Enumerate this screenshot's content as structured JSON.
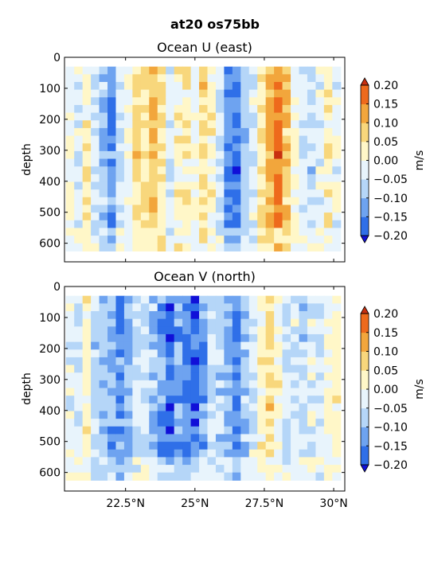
{
  "figure": {
    "title": "at20 os75bb"
  },
  "chart_data": [
    {
      "type": "heatmap",
      "title": "Ocean U (east)",
      "xlabel": "",
      "ylabel": "depth",
      "xlim": [
        20.3,
        30.4
      ],
      "ylim": [
        660,
        0
      ],
      "yticks": [
        0,
        100,
        200,
        300,
        400,
        500,
        600
      ],
      "xticks": [
        22.5,
        25,
        27.5,
        30
      ],
      "xticklabels": [],
      "data_depth_range": [
        30,
        625
      ],
      "columns": [
        {
          "lat": 20.5,
          "v": 0.0
        },
        {
          "lat": 20.8,
          "v": -0.03
        },
        {
          "lat": 21.1,
          "v": 0.03
        },
        {
          "lat": 21.4,
          "v": -0.05
        },
        {
          "lat": 21.7,
          "v": -0.08
        },
        {
          "lat": 22.0,
          "v": -0.14
        },
        {
          "lat": 22.3,
          "v": -0.06
        },
        {
          "lat": 22.6,
          "v": 0.0
        },
        {
          "lat": 22.9,
          "v": 0.06
        },
        {
          "lat": 23.2,
          "v": 0.05
        },
        {
          "lat": 23.5,
          "v": 0.1
        },
        {
          "lat": 23.8,
          "v": 0.04
        },
        {
          "lat": 24.1,
          "v": -0.04
        },
        {
          "lat": 24.4,
          "v": 0.02
        },
        {
          "lat": 24.7,
          "v": 0.03
        },
        {
          "lat": 25.0,
          "v": -0.02
        },
        {
          "lat": 25.3,
          "v": 0.06
        },
        {
          "lat": 25.6,
          "v": 0.02
        },
        {
          "lat": 25.9,
          "v": -0.05
        },
        {
          "lat": 26.2,
          "v": -0.15
        },
        {
          "lat": 26.5,
          "v": -0.16
        },
        {
          "lat": 26.8,
          "v": -0.09
        },
        {
          "lat": 27.1,
          "v": -0.03
        },
        {
          "lat": 27.4,
          "v": 0.05
        },
        {
          "lat": 27.7,
          "v": 0.11
        },
        {
          "lat": 28.0,
          "v": 0.16
        },
        {
          "lat": 28.3,
          "v": 0.09
        },
        {
          "lat": 28.6,
          "v": 0.01
        },
        {
          "lat": 28.9,
          "v": -0.04
        },
        {
          "lat": 29.2,
          "v": -0.06
        },
        {
          "lat": 29.5,
          "v": -0.02
        },
        {
          "lat": 29.8,
          "v": 0.02
        },
        {
          "lat": 30.1,
          "v": -0.01
        }
      ]
    },
    {
      "type": "heatmap",
      "title": "Ocean V (north)",
      "xlabel": "",
      "ylabel": "depth",
      "xlim": [
        20.3,
        30.4
      ],
      "ylim": [
        660,
        0
      ],
      "yticks": [
        0,
        100,
        200,
        300,
        400,
        500,
        600
      ],
      "xticks": [
        22.5,
        25,
        27.5,
        30
      ],
      "xticklabels": [
        "22.5°N",
        "25°N",
        "27.5°N",
        "30°N"
      ],
      "data_depth_range": [
        30,
        625
      ],
      "columns": [
        {
          "lat": 20.5,
          "v": -0.02
        },
        {
          "lat": 20.8,
          "v": -0.05
        },
        {
          "lat": 21.1,
          "v": 0.01
        },
        {
          "lat": 21.4,
          "v": -0.06
        },
        {
          "lat": 21.7,
          "v": -0.09
        },
        {
          "lat": 22.0,
          "v": -0.11
        },
        {
          "lat": 22.3,
          "v": -0.13
        },
        {
          "lat": 22.6,
          "v": -0.09
        },
        {
          "lat": 22.9,
          "v": -0.06
        },
        {
          "lat": 23.2,
          "v": -0.03
        },
        {
          "lat": 23.5,
          "v": -0.08
        },
        {
          "lat": 23.8,
          "v": -0.13
        },
        {
          "lat": 24.1,
          "v": -0.17
        },
        {
          "lat": 24.4,
          "v": -0.12
        },
        {
          "lat": 24.7,
          "v": -0.16
        },
        {
          "lat": 25.0,
          "v": -0.18
        },
        {
          "lat": 25.3,
          "v": -0.12
        },
        {
          "lat": 25.6,
          "v": -0.05
        },
        {
          "lat": 25.9,
          "v": -0.07
        },
        {
          "lat": 26.2,
          "v": -0.1
        },
        {
          "lat": 26.5,
          "v": -0.14
        },
        {
          "lat": 26.8,
          "v": -0.08
        },
        {
          "lat": 27.1,
          "v": -0.04
        },
        {
          "lat": 27.4,
          "v": 0.02
        },
        {
          "lat": 27.7,
          "v": 0.06
        },
        {
          "lat": 28.0,
          "v": 0.01
        },
        {
          "lat": 28.3,
          "v": -0.05
        },
        {
          "lat": 28.6,
          "v": -0.03
        },
        {
          "lat": 28.9,
          "v": -0.06
        },
        {
          "lat": 29.2,
          "v": -0.02
        },
        {
          "lat": 29.5,
          "v": -0.04
        },
        {
          "lat": 29.8,
          "v": 0.0
        },
        {
          "lat": 30.1,
          "v": 0.02
        }
      ]
    }
  ],
  "colorbar": {
    "label": "m/s",
    "ticks": [
      "0.20",
      "0.15",
      "0.10",
      "0.05",
      "0.00",
      "−0.05",
      "−0.10",
      "−0.15",
      "−0.20"
    ],
    "levels": [
      -0.2,
      -0.15,
      -0.1,
      -0.05,
      0.0,
      0.05,
      0.1,
      0.15,
      0.2
    ],
    "colors": [
      "#1010d8",
      "#2f6fe8",
      "#6ea3f0",
      "#b5d6f8",
      "#e8f4fc",
      "#fff7c8",
      "#f8d77c",
      "#f2a63c",
      "#ee6a1c",
      "#c83010"
    ],
    "extend": "both"
  }
}
